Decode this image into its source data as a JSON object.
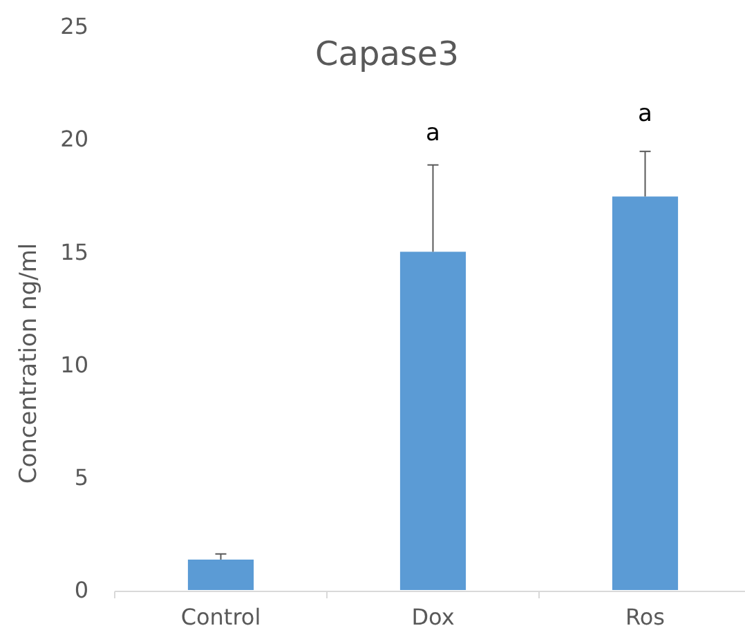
{
  "chart_data": {
    "type": "bar",
    "title": "Capase3",
    "ylabel": "Concentration ng/ml",
    "categories": [
      "Control",
      "Dox",
      "Ros"
    ],
    "values": [
      1.35,
      15,
      17.45
    ],
    "errors": [
      [
        1.35,
        1.6
      ],
      [
        15,
        18.85
      ],
      [
        17.45,
        19.45
      ]
    ],
    "color": "#5b9bd5",
    "ylim": [
      0,
      25
    ],
    "yticks": [
      0,
      5,
      10,
      15,
      20,
      25
    ],
    "grid": false,
    "annotations": [
      "a",
      "a"
    ]
  }
}
